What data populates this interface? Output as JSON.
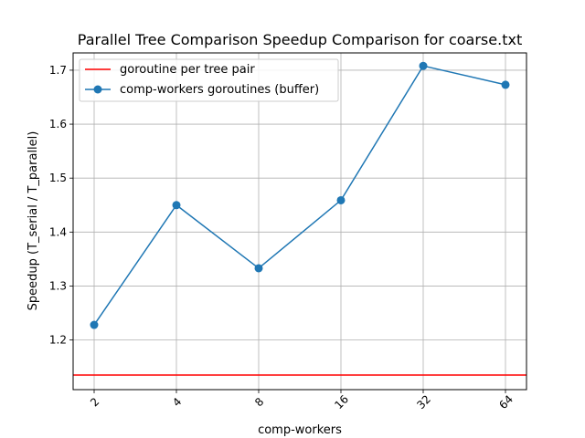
{
  "chart_data": {
    "type": "line",
    "title": "Parallel Tree Comparison Speedup Comparison for coarse.txt",
    "xlabel": "comp-workers",
    "ylabel": "Speedup (T_serial / T_parallel)",
    "categories": [
      "2",
      "4",
      "8",
      "16",
      "32",
      "64"
    ],
    "ylim": [
      1.108,
      1.732
    ],
    "yticks": [
      "1.2",
      "1.3",
      "1.4",
      "1.5",
      "1.6",
      "1.7"
    ],
    "grid": true,
    "legend_position": "top-left",
    "series": [
      {
        "name": "comp-workers goroutines (buffer)",
        "values": [
          1.228,
          1.45,
          1.333,
          1.459,
          1.708,
          1.673
        ],
        "color": "#1f77b4",
        "marker": "circle"
      }
    ],
    "reference_lines": [
      {
        "name": "goroutine per tree pair",
        "value": 1.135,
        "color": "#ff0000"
      }
    ]
  }
}
